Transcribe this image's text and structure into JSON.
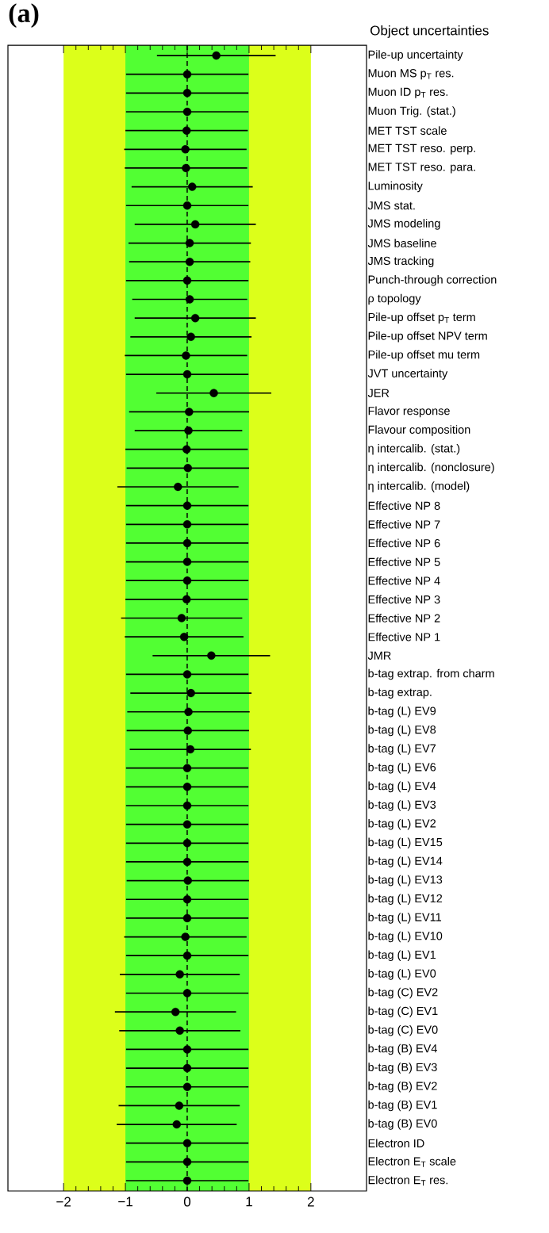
{
  "chart_data": {
    "type": "scatter",
    "orientation": "horizontal",
    "title": "(a)",
    "subtitle": "Object uncertainties",
    "categories": [
      "Pile-up uncertainty",
      "Muon MS p$_{T}$ res.",
      "Muon ID p$_{T}$ res.",
      "Muon Trig. (stat.)",
      "MET TST scale",
      "MET TST reso. perp.",
      "MET TST reso. para.",
      "Luminosity",
      "JMS stat.",
      "JMS modeling",
      "JMS baseline",
      "JMS tracking",
      "Punch-through correction",
      "ρ topology",
      "Pile-up offset p$_{T}$ term",
      "Pile-up offset NPV term",
      "Pile-up offset mu term",
      "JVT uncertainty",
      "JER",
      "Flavor response",
      "Flavour composition",
      "η intercalib. (stat.)",
      "η intercalib. (nonclosure)",
      "η intercalib. (model)",
      "Effective NP 8",
      "Effective NP 7",
      "Effective NP 6",
      "Effective NP 5",
      "Effective NP 4",
      "Effective NP 3",
      "Effective NP 2",
      "Effective NP 1",
      "JMR",
      "b-tag extrap. from charm",
      "b-tag extrap.",
      "b-tag (L) EV9",
      "b-tag (L) EV8",
      "b-tag (L) EV7",
      "b-tag (L) EV6",
      "b-tag (L) EV4",
      "b-tag (L) EV3",
      "b-tag (L) EV2",
      "b-tag (L) EV15",
      "b-tag (L) EV14",
      "b-tag (L) EV13",
      "b-tag (L) EV12",
      "b-tag (L) EV11",
      "b-tag (L) EV10",
      "b-tag (L) EV1",
      "b-tag (L) EV0",
      "b-tag (C) EV2",
      "b-tag (C) EV1",
      "b-tag (C) EV0",
      "b-tag (B) EV4",
      "b-tag (B) EV3",
      "b-tag (B) EV2",
      "b-tag (B) EV1",
      "b-tag (B) EV0",
      "Electron ID",
      "Electron E$_{T}$ scale",
      "Electron E$_{T}$ res."
    ],
    "values": [
      0.47,
      0,
      0,
      0,
      -0.01,
      -0.03,
      -0.02,
      0.08,
      0,
      0.13,
      0.04,
      0.04,
      0,
      0.04,
      0.13,
      0.06,
      -0.02,
      0,
      0.43,
      0.03,
      0.02,
      -0.01,
      0.01,
      -0.15,
      0,
      0,
      0,
      0,
      0,
      -0.01,
      -0.09,
      -0.05,
      0.39,
      0,
      0.06,
      0.02,
      0.01,
      0.05,
      0,
      0,
      0,
      0,
      0,
      0,
      0.01,
      0,
      0,
      -0.03,
      0,
      -0.12,
      0,
      -0.19,
      -0.12,
      0,
      0,
      0,
      -0.13,
      -0.17,
      0,
      0,
      0
    ],
    "errors": [
      0.96,
      0.99,
      0.99,
      0.99,
      0.99,
      0.99,
      0.99,
      0.98,
      0.99,
      0.98,
      0.99,
      0.98,
      0.99,
      0.93,
      0.98,
      0.98,
      0.99,
      0.99,
      0.93,
      0.97,
      0.87,
      0.99,
      0.99,
      0.98,
      0.99,
      0.99,
      0.99,
      0.99,
      0.99,
      0.99,
      0.98,
      0.96,
      0.95,
      0.99,
      0.98,
      0.99,
      0.99,
      0.98,
      0.99,
      0.99,
      0.99,
      0.99,
      0.99,
      0.99,
      0.99,
      0.99,
      0.99,
      0.99,
      0.99,
      0.97,
      0.99,
      0.98,
      0.98,
      0.99,
      0.99,
      0.99,
      0.98,
      0.97,
      0.99,
      0.99,
      0.99
    ],
    "color": "#000000",
    "marker": "circle",
    "xlim": [
      -2.9,
      2.9
    ],
    "xticks": [
      {
        "value": -2,
        "label": "−2"
      },
      {
        "value": -1,
        "label": "−1"
      },
      0,
      1,
      2
    ],
    "bands": [
      {
        "axis": "x",
        "from": -2,
        "to": 2,
        "color": "#dcff1a"
      },
      {
        "axis": "x",
        "from": -1,
        "to": 1,
        "color": "#52ff33"
      }
    ],
    "ref_lines": [
      {
        "axis": "x",
        "value": 0,
        "line_style": "dashed"
      }
    ]
  }
}
